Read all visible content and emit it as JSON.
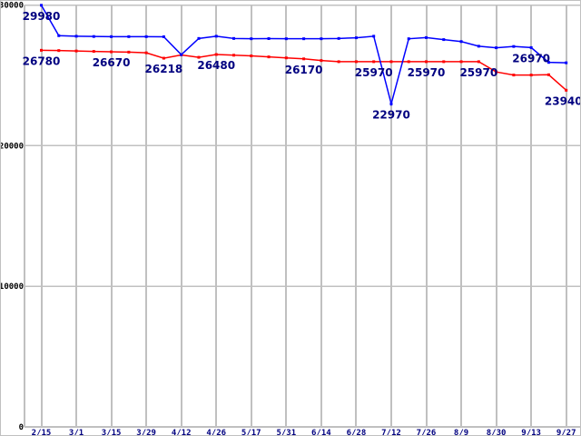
{
  "meta": {
    "background_color": "#ffffff",
    "grid_color": "#c0c0c0",
    "axis_color": "#c0c0c0",
    "point_label_color": "#000080",
    "y_tick_color": "#000000",
    "x_tick_color": "#000080",
    "series_blue_color": "#0000ff",
    "series_red_color": "#ff0000"
  },
  "chart_data": {
    "type": "line",
    "title": "",
    "xlabel": "",
    "ylabel": "",
    "legend": "none",
    "grid": "on",
    "x_axis": {
      "tick_labels": [
        "2/15",
        "3/1",
        "3/15",
        "3/29",
        "4/12",
        "4/26",
        "5/17",
        "5/31",
        "6/14",
        "6/28",
        "7/12",
        "7/26",
        "8/9",
        "8/30",
        "9/13",
        "9/27"
      ],
      "points_per_tick": 2,
      "n_points": 31
    },
    "y_axis": {
      "min": 0,
      "max": 30000,
      "tick_labels": [
        "0",
        "10000",
        "20000",
        "30000"
      ],
      "tick_values": [
        0,
        10000,
        20000,
        30000
      ]
    },
    "series": [
      {
        "name": "blue-series",
        "color": "#0000ff",
        "values": [
          29980,
          27820,
          27780,
          27760,
          27750,
          27750,
          27750,
          27740,
          26470,
          27620,
          27780,
          27620,
          27600,
          27610,
          27600,
          27600,
          27600,
          27620,
          27670,
          27780,
          22970,
          27600,
          27680,
          27540,
          27400,
          27070,
          26960,
          27050,
          26970,
          25920,
          25890
        ]
      },
      {
        "name": "red-series",
        "color": "#ff0000",
        "values": [
          26780,
          26760,
          26730,
          26700,
          26670,
          26650,
          26600,
          26218,
          26450,
          26280,
          26480,
          26430,
          26380,
          26310,
          26240,
          26170,
          26050,
          25970,
          25970,
          25970,
          25970,
          25970,
          25970,
          25970,
          25970,
          25970,
          25240,
          25020,
          25020,
          25040,
          23940
        ]
      }
    ],
    "point_labels": [
      {
        "series": 0,
        "index": 0,
        "text": "29980"
      },
      {
        "series": 1,
        "index": 0,
        "text": "26780"
      },
      {
        "series": 1,
        "index": 4,
        "text": "26670"
      },
      {
        "series": 1,
        "index": 7,
        "text": "26218"
      },
      {
        "series": 1,
        "index": 10,
        "text": "26480"
      },
      {
        "series": 1,
        "index": 15,
        "text": "26170"
      },
      {
        "series": 1,
        "index": 19,
        "text": "25970"
      },
      {
        "series": 0,
        "index": 20,
        "text": "22970"
      },
      {
        "series": 1,
        "index": 22,
        "text": "25970"
      },
      {
        "series": 1,
        "index": 25,
        "text": "25970"
      },
      {
        "series": 0,
        "index": 28,
        "text": "26970"
      },
      {
        "series": 1,
        "index": 30,
        "text": "23940"
      }
    ]
  }
}
